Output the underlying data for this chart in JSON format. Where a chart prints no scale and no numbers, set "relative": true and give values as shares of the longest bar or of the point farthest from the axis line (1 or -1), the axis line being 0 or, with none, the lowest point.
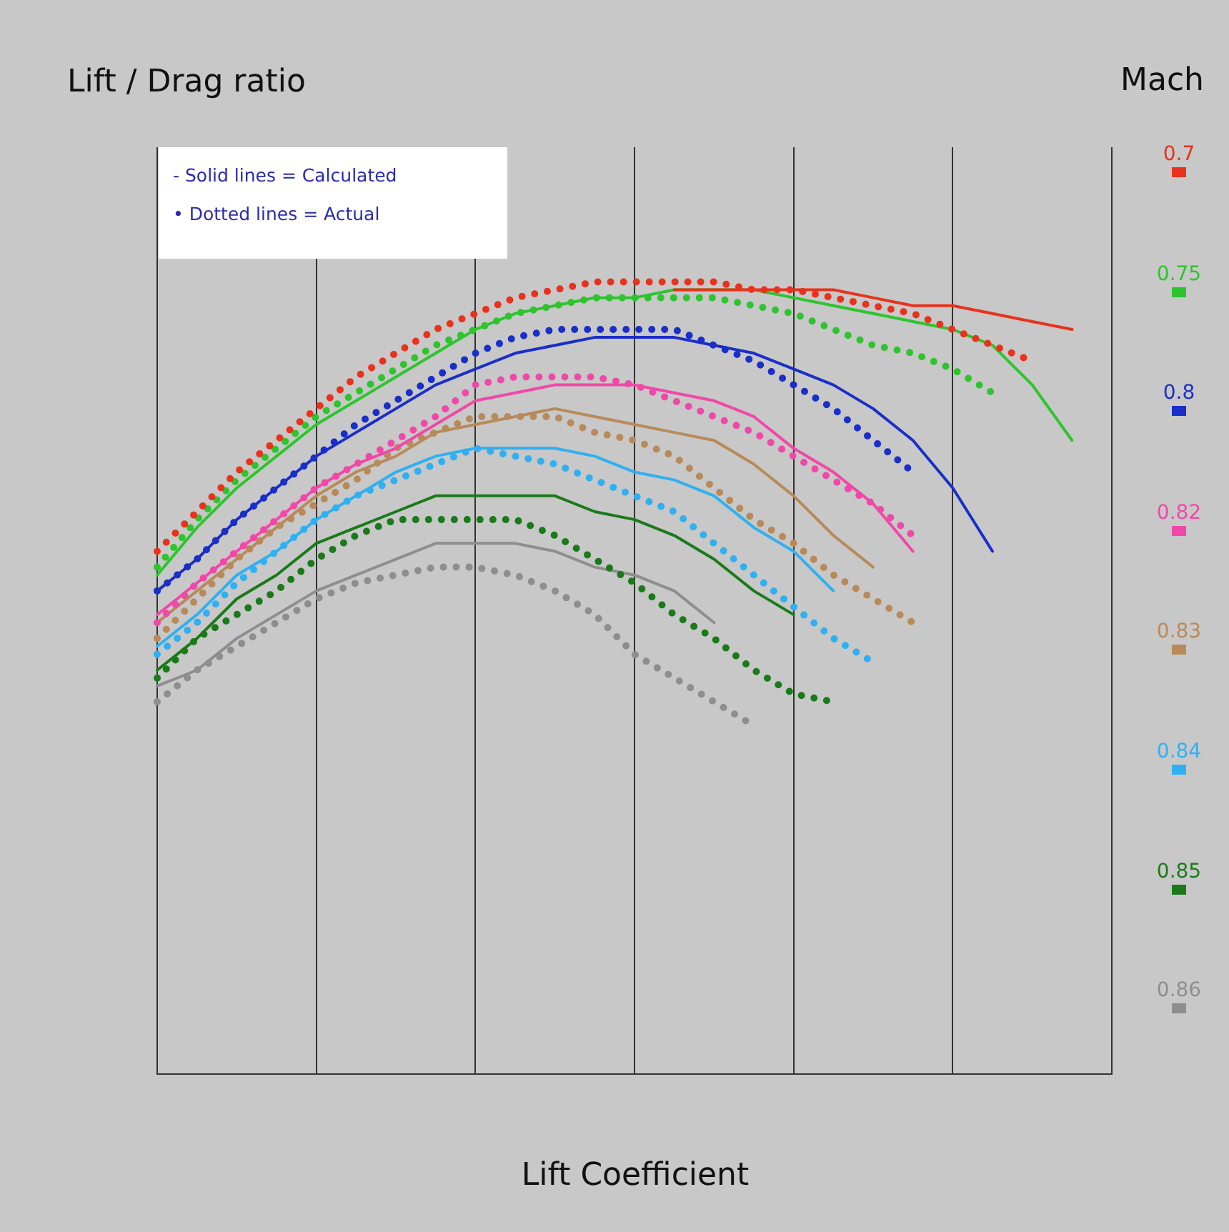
{
  "chart_data": {
    "type": "line",
    "relative": true,
    "xlabel": "Lift Coefficient",
    "legend": "right",
    "legend_title": "Mach",
    "grid": "x",
    "marker": "none",
    "annotations": [
      "Lift / Drag ratio",
      "- Solid lines = Calculated",
      "• Dotted lines = Actual"
    ],
    "categories": [
      null,
      null,
      null,
      null,
      null,
      null,
      null,
      null,
      null,
      null,
      null,
      null,
      null,
      null,
      null,
      null,
      null,
      null,
      null,
      null,
      null,
      null,
      null,
      null,
      null
    ],
    "series": [
      {
        "color": "#e8321e",
        "line_style": "dotted",
        "values": [
          0.66,
          0.71,
          0.76,
          0.8,
          0.84,
          0.88,
          0.91,
          0.94,
          0.96,
          0.98,
          0.99,
          1,
          1,
          1,
          1,
          0.99,
          0.99,
          0.98,
          0.97,
          0.96,
          0.94,
          0.92,
          0.9,
          null,
          null
        ]
      },
      {
        "name": "0.7",
        "color": "#e8321e",
        "line_style": "solid",
        "values": [
          null,
          null,
          null,
          null,
          null,
          null,
          null,
          null,
          null,
          null,
          null,
          null,
          null,
          0.99,
          0.99,
          0.99,
          0.99,
          0.99,
          0.98,
          0.97,
          0.97,
          0.96,
          0.95,
          0.94,
          null
        ]
      },
      {
        "color": "#2ec42e",
        "line_style": "dotted",
        "values": [
          0.64,
          0.7,
          0.75,
          0.79,
          0.83,
          0.86,
          0.89,
          0.92,
          0.94,
          0.96,
          0.97,
          0.98,
          0.98,
          0.98,
          0.98,
          0.97,
          0.96,
          0.94,
          0.92,
          0.91,
          0.89,
          0.86,
          null,
          null,
          null
        ]
      },
      {
        "name": "0.75",
        "color": "#2ec42e",
        "line_style": "solid",
        "values": [
          0.63,
          0.69,
          0.74,
          0.78,
          0.82,
          0.85,
          0.88,
          0.91,
          0.94,
          0.96,
          0.97,
          0.98,
          0.98,
          0.99,
          0.99,
          0.99,
          0.98,
          0.97,
          0.96,
          0.95,
          0.94,
          0.92,
          0.87,
          0.8,
          null
        ]
      },
      {
        "color": "#1a2ec8",
        "line_style": "dotted",
        "values": [
          0.61,
          0.65,
          0.7,
          0.74,
          0.78,
          0.82,
          0.85,
          0.88,
          0.91,
          0.93,
          0.94,
          0.94,
          0.94,
          0.94,
          0.92,
          0.9,
          0.87,
          0.84,
          0.8,
          0.76,
          null,
          null,
          null,
          null,
          null
        ]
      },
      {
        "name": "0.8",
        "color": "#1a2ec8",
        "line_style": "solid",
        "values": [
          0.61,
          0.65,
          0.7,
          0.74,
          0.78,
          0.81,
          0.84,
          0.87,
          0.89,
          0.91,
          0.92,
          0.93,
          0.93,
          0.93,
          0.92,
          0.91,
          0.89,
          0.87,
          0.84,
          0.8,
          0.74,
          0.66,
          null,
          null,
          null
        ]
      },
      {
        "color": "#f048a8",
        "line_style": "dotted",
        "values": [
          0.57,
          0.62,
          0.66,
          0.7,
          0.74,
          0.77,
          0.8,
          0.83,
          0.87,
          0.88,
          0.88,
          0.88,
          0.87,
          0.85,
          0.83,
          0.81,
          0.78,
          0.75,
          0.72,
          0.68,
          null,
          null,
          null,
          null,
          null
        ]
      },
      {
        "name": "0.82",
        "color": "#f048a8",
        "line_style": "solid",
        "values": [
          0.58,
          0.62,
          0.66,
          0.7,
          0.74,
          0.77,
          0.79,
          0.82,
          0.85,
          0.86,
          0.87,
          0.87,
          0.87,
          0.86,
          0.85,
          0.83,
          0.79,
          0.76,
          0.72,
          0.66,
          null,
          null,
          null,
          null,
          null
        ]
      },
      {
        "color": "#b88a5a",
        "line_style": "dotted",
        "values": [
          0.55,
          0.6,
          0.65,
          0.69,
          0.72,
          0.75,
          0.79,
          0.81,
          0.83,
          0.83,
          0.83,
          0.81,
          0.8,
          0.78,
          0.74,
          0.7,
          0.67,
          0.63,
          0.6,
          0.57,
          null,
          null,
          null,
          null,
          null
        ]
      },
      {
        "name": "0.83",
        "color": "#b88a5a",
        "line_style": "solid",
        "values": [
          0.57,
          0.61,
          0.65,
          0.69,
          0.73,
          0.76,
          0.78,
          0.81,
          0.82,
          0.83,
          0.84,
          0.83,
          0.82,
          0.81,
          0.8,
          0.77,
          0.73,
          0.68,
          0.64,
          null,
          null,
          null,
          null,
          null,
          null
        ]
      },
      {
        "color": "#30b0f0",
        "line_style": "dotted",
        "values": [
          0.53,
          0.57,
          0.62,
          0.66,
          0.7,
          0.73,
          0.75,
          0.77,
          0.79,
          0.78,
          0.77,
          0.75,
          0.73,
          0.71,
          0.67,
          0.63,
          0.59,
          0.55,
          0.52,
          null,
          null,
          null,
          null,
          null,
          null
        ]
      },
      {
        "name": "0.84",
        "color": "#30b0f0",
        "line_style": "solid",
        "values": [
          0.54,
          0.58,
          0.63,
          0.66,
          0.7,
          0.73,
          0.76,
          0.78,
          0.79,
          0.79,
          0.79,
          0.78,
          0.76,
          0.75,
          0.73,
          0.69,
          0.66,
          0.61,
          null,
          null,
          null,
          null,
          null,
          null,
          null
        ]
      },
      {
        "color": "#1a7a1a",
        "line_style": "dotted",
        "values": [
          0.5,
          0.55,
          0.58,
          0.61,
          0.65,
          0.68,
          0.7,
          0.7,
          0.7,
          0.7,
          0.68,
          0.65,
          0.62,
          0.58,
          0.55,
          0.51,
          0.48,
          0.47,
          null,
          null,
          null,
          null,
          null,
          null,
          null
        ]
      },
      {
        "name": "0.85",
        "color": "#1a7a1a",
        "line_style": "solid",
        "values": [
          0.51,
          0.55,
          0.6,
          0.63,
          0.67,
          0.69,
          0.71,
          0.73,
          0.73,
          0.73,
          0.73,
          0.71,
          0.7,
          0.68,
          0.65,
          0.61,
          0.58,
          null,
          null,
          null,
          null,
          null,
          null,
          null,
          null
        ]
      },
      {
        "color": "#8e8e8e",
        "line_style": "dotted",
        "values": [
          0.47,
          0.51,
          0.54,
          0.57,
          0.6,
          0.62,
          0.63,
          0.64,
          0.64,
          0.63,
          0.61,
          0.58,
          0.53,
          0.5,
          0.47,
          0.44,
          null,
          null,
          null,
          null,
          null,
          null,
          null,
          null,
          null
        ]
      },
      {
        "name": "0.86",
        "color": "#8e8e8e",
        "line_style": "solid",
        "values": [
          0.49,
          0.51,
          0.55,
          0.58,
          0.61,
          0.63,
          0.65,
          0.67,
          0.67,
          0.67,
          0.66,
          0.64,
          0.63,
          0.61,
          0.57,
          null,
          null,
          null,
          null,
          null,
          null,
          null,
          null,
          null,
          null
        ]
      }
    ]
  }
}
